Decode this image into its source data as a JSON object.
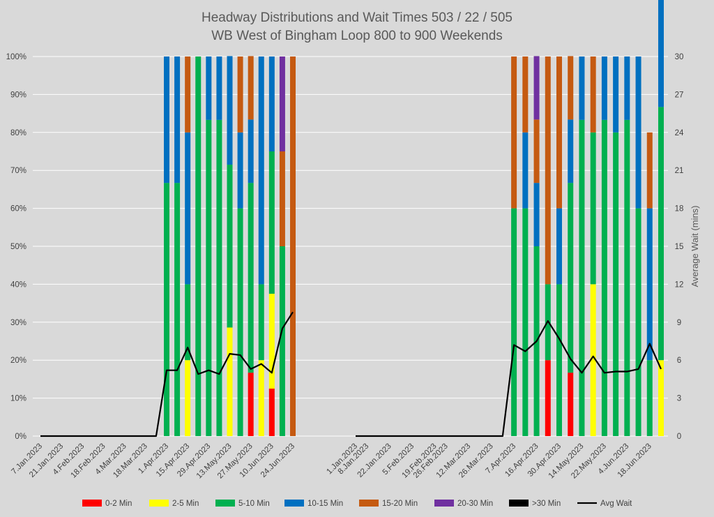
{
  "chart_data": {
    "type": "bar",
    "stacked": true,
    "title_line1": "Headway Distributions and Wait Times 503 / 22 / 505",
    "title_line2": "WB West of Bingham Loop 800 to 900 Weekends",
    "ylabel_right": "Average Wait (mins)",
    "y_left_ticks": [
      "0%",
      "10%",
      "20%",
      "30%",
      "40%",
      "50%",
      "60%",
      "70%",
      "80%",
      "90%",
      "100%"
    ],
    "y_right_ticks": [
      "0",
      "3",
      "6",
      "9",
      "12",
      "15",
      "18",
      "21",
      "24",
      "27",
      "30"
    ],
    "y_left_range": [
      0,
      100
    ],
    "y_right_range": [
      0,
      30
    ],
    "grid": true,
    "legend_position": "bottom",
    "colors": {
      "0-2 Min": "#ff0000",
      "2-5 Min": "#ffff00",
      "5-10 Min": "#00b050",
      "10-15 Min": "#0070c0",
      "15-20 Min": "#c55a11",
      "20-30 Min": "#7030a0",
      ">30 Min": "#000000",
      "Avg Wait": "#000000"
    },
    "legend": [
      {
        "name": "0-2 Min",
        "kind": "box"
      },
      {
        "name": "2-5 Min",
        "kind": "box"
      },
      {
        "name": "5-10 Min",
        "kind": "box"
      },
      {
        "name": "10-15 Min",
        "kind": "box"
      },
      {
        "name": "15-20 Min",
        "kind": "box"
      },
      {
        "name": "20-30 Min",
        "kind": "box"
      },
      {
        "name": ">30 Min",
        "kind": "box"
      },
      {
        "name": "Avg Wait",
        "kind": "line"
      }
    ],
    "panels": [
      {
        "categories": [
          "7.Jan.2023",
          "14.Jan.2023",
          "21.Jan.2023",
          "28.Jan.2023",
          "4.Feb.2023",
          "11.Feb.2023",
          "18.Feb.2023",
          "25.Feb.2023",
          "4.Mar.2023",
          "11.Mar.2023",
          "18.Mar.2023",
          "25.Mar.2023",
          "1.Apr.2023",
          "8.Apr.2023",
          "15.Apr.2023",
          "22.Apr.2023",
          "29.Apr.2023",
          "6.May.2023",
          "13.May.2023",
          "20.May.2023",
          "27.May.2023",
          "3.Jun.2023",
          "10.Jun.2023",
          "17.Jun.2023",
          "24.Jun.2023"
        ],
        "tick_labels_shown": [
          "7.Jan.2023",
          "21.Jan.2023",
          "4.Feb.2023",
          "18.Feb.2023",
          "4.Mar.2023",
          "18.Mar.2023",
          "1.Apr.2023",
          "15.Apr.2023",
          "29.Apr.2023",
          "13.May.2023",
          "27.May.2023",
          "10.Jun.2023",
          "24.Jun.2023"
        ],
        "series": [
          {
            "name": "0-2 Min",
            "values": [
              0,
              0,
              0,
              0,
              0,
              0,
              0,
              0,
              0,
              0,
              0,
              0,
              0,
              0,
              0,
              0,
              0,
              0,
              0,
              0,
              16.7,
              0,
              12.5,
              0,
              0
            ]
          },
          {
            "name": "2-5 Min",
            "values": [
              0,
              0,
              0,
              0,
              0,
              0,
              0,
              0,
              0,
              0,
              0,
              0,
              0,
              0,
              20,
              0,
              0,
              0,
              28.6,
              0,
              0,
              20,
              25,
              0,
              0
            ]
          },
          {
            "name": "5-10 Min",
            "values": [
              0,
              0,
              0,
              0,
              0,
              0,
              0,
              0,
              0,
              0,
              0,
              0,
              66.7,
              66.7,
              20,
              100,
              83.3,
              83.3,
              42.9,
              60,
              50,
              20,
              37.5,
              50,
              0
            ]
          },
          {
            "name": "10-15 Min",
            "values": [
              0,
              0,
              0,
              0,
              0,
              0,
              0,
              0,
              0,
              0,
              0,
              0,
              33.3,
              33.3,
              40,
              0,
              16.7,
              16.7,
              28.6,
              20,
              16.7,
              60,
              25,
              0,
              0
            ]
          },
          {
            "name": "15-20 Min",
            "values": [
              0,
              0,
              0,
              0,
              0,
              0,
              0,
              0,
              0,
              0,
              0,
              0,
              0,
              0,
              20,
              0,
              0,
              0,
              0,
              20,
              16.7,
              0,
              0,
              25,
              100
            ]
          },
          {
            "name": "20-30 Min",
            "values": [
              0,
              0,
              0,
              0,
              0,
              0,
              0,
              0,
              0,
              0,
              0,
              0,
              0,
              0,
              0,
              0,
              0,
              0,
              0,
              0,
              0,
              0,
              0,
              25,
              0
            ]
          },
          {
            "name": ">30 Min",
            "values": [
              0,
              0,
              0,
              0,
              0,
              0,
              0,
              0,
              0,
              0,
              0,
              0,
              0,
              0,
              0,
              0,
              0,
              0,
              0,
              0,
              0,
              0,
              0,
              0,
              0
            ]
          }
        ],
        "avg_wait": [
          0,
          0,
          0,
          0,
          0,
          0,
          0,
          0,
          0,
          0,
          0,
          0,
          5.2,
          5.2,
          7.0,
          4.9,
          5.2,
          4.9,
          6.5,
          6.4,
          5.3,
          5.7,
          5.0,
          8.5,
          9.8
        ]
      },
      {
        "categories": [
          "1.Jan.2023",
          "8.Jan.2023",
          "15.Jan.2023",
          "22.Jan.2023",
          "29.Jan.2023",
          "5.Feb.2023",
          "12.Feb.2023",
          "19.Feb.2023",
          "26.Feb.2023",
          "5.Mar.2023",
          "12.Mar.2023",
          "19.Mar.2023",
          "26.Mar.2023",
          "2.Apr.2023",
          "7.Apr.2023",
          "9.Apr.2023",
          "16.Apr.2023",
          "23.Apr.2023",
          "30.Apr.2023",
          "7.May.2023",
          "14.May.2023",
          "21.May.2023",
          "22.May.2023",
          "28.May.2023",
          "4.Jun.2023",
          "11.Jun.2023",
          "18.Jun.2023",
          "25.Jun.2023"
        ],
        "tick_labels_shown": [
          "1.Jan.2023",
          "8.Jan.2023",
          "22.Jan.2023",
          "5.Feb.2023",
          "19.Feb.2023",
          "26.Feb.2023",
          "12.Mar.2023",
          "26.Mar.2023",
          "7.Apr.2023",
          "16.Apr.2023",
          "30.Apr.2023",
          "14.May.2023",
          "22.May.2023",
          "4.Jun.2023",
          "18.Jun.2023"
        ],
        "series": [
          {
            "name": "0-2 Min",
            "values": [
              0,
              0,
              0,
              0,
              0,
              0,
              0,
              0,
              0,
              0,
              0,
              0,
              0,
              0,
              0,
              0,
              0,
              20,
              0,
              16.7,
              0,
              0,
              0,
              0,
              0,
              0,
              0,
              0
            ]
          },
          {
            "name": "2-5 Min",
            "values": [
              0,
              0,
              0,
              0,
              0,
              0,
              0,
              0,
              0,
              0,
              0,
              0,
              0,
              0,
              0,
              0,
              0,
              0,
              0,
              0,
              0,
              40,
              0,
              0,
              0,
              0,
              0,
              20
            ]
          },
          {
            "name": "5-10 Min",
            "values": [
              0,
              0,
              0,
              0,
              0,
              0,
              0,
              0,
              0,
              0,
              0,
              0,
              0,
              0,
              60,
              60,
              50,
              20,
              40,
              50,
              83.3,
              40,
              83.3,
              80,
              83.3,
              60,
              20,
              66.7
            ]
          },
          {
            "name": "10-15 Min",
            "values": [
              0,
              0,
              0,
              0,
              0,
              0,
              0,
              0,
              0,
              0,
              0,
              0,
              0,
              0,
              0,
              20,
              16.7,
              0,
              20,
              16.7,
              16.7,
              0,
              16.7,
              20,
              16.7,
              40,
              40,
              33.3
            ]
          },
          {
            "name": "15-20 Min",
            "values": [
              0,
              0,
              0,
              0,
              0,
              0,
              0,
              0,
              0,
              0,
              0,
              0,
              0,
              0,
              40,
              20,
              16.7,
              60,
              40,
              16.7,
              0,
              20,
              0,
              0,
              0,
              0,
              20,
              0
            ]
          },
          {
            "name": "20-30 Min",
            "values": [
              0,
              0,
              0,
              0,
              0,
              0,
              0,
              0,
              0,
              0,
              0,
              0,
              0,
              0,
              0,
              0,
              16.7,
              0,
              0,
              0,
              0,
              0,
              0,
              0,
              0,
              0,
              0,
              0
            ]
          },
          {
            "name": ">30 Min",
            "values": [
              0,
              0,
              0,
              0,
              0,
              0,
              0,
              0,
              0,
              0,
              0,
              0,
              0,
              0,
              0,
              0,
              0,
              0,
              0,
              0,
              0,
              0,
              0,
              0,
              0,
              0,
              0,
              0
            ]
          }
        ],
        "avg_wait": [
          0,
          0,
          0,
          0,
          0,
          0,
          0,
          0,
          0,
          0,
          0,
          0,
          0,
          0,
          7.2,
          6.7,
          7.5,
          9.1,
          7.7,
          6.1,
          5.0,
          6.3,
          5.0,
          5.1,
          5.1,
          5.3,
          7.3,
          5.3
        ]
      }
    ]
  }
}
